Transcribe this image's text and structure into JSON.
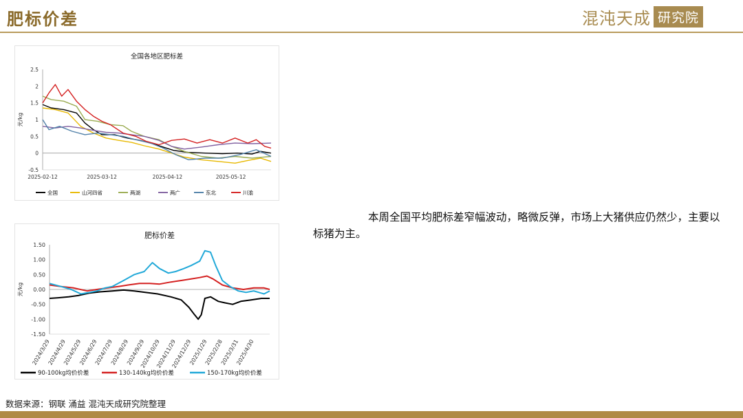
{
  "header": {
    "title": "肥标价差",
    "brand_text": "混沌天成",
    "brand_box": "研究院"
  },
  "commentary": "本周全国平均肥标差窄幅波动，略微反弹，市场上大猪供应仍然少，主要以标猪为主。",
  "source": "数据来源：钢联 涌益 混沌天成研究院整理",
  "chart_data": [
    {
      "type": "line",
      "title": "全国各地区肥标差",
      "ylabel": "元/kg",
      "ylim": [
        -0.5,
        2.5
      ],
      "yticks": [
        2.5,
        2,
        1.5,
        1,
        0.5,
        0,
        -0.5
      ],
      "xticks": [
        "2025-02-12",
        "2025-03-12",
        "2025-04-12",
        "2025-05-12"
      ],
      "x_range": [
        "2025-02-12",
        "2025-05-31"
      ],
      "grid": false,
      "legend_position": "bottom",
      "series": [
        {
          "name": "全国",
          "color": "#000000",
          "points": [
            [
              "2025-02-12",
              1.45
            ],
            [
              "2025-02-16",
              1.35
            ],
            [
              "2025-02-22",
              1.3
            ],
            [
              "2025-02-28",
              1.2
            ],
            [
              "2025-03-04",
              0.9
            ],
            [
              "2025-03-08",
              0.7
            ],
            [
              "2025-03-12",
              0.55
            ],
            [
              "2025-03-18",
              0.55
            ],
            [
              "2025-03-24",
              0.45
            ],
            [
              "2025-03-30",
              0.38
            ],
            [
              "2025-04-05",
              0.28
            ],
            [
              "2025-04-10",
              0.18
            ],
            [
              "2025-04-15",
              0.08
            ],
            [
              "2025-04-22",
              0.02
            ],
            [
              "2025-04-30",
              0.0
            ],
            [
              "2025-05-08",
              -0.02
            ],
            [
              "2025-05-15",
              0.0
            ],
            [
              "2025-05-22",
              -0.03
            ],
            [
              "2025-05-26",
              0.05
            ],
            [
              "2025-05-31",
              0.0
            ]
          ]
        },
        {
          "name": "山河四省",
          "color": "#e8b800",
          "points": [
            [
              "2025-02-12",
              1.35
            ],
            [
              "2025-02-18",
              1.3
            ],
            [
              "2025-02-24",
              1.2
            ],
            [
              "2025-03-02",
              0.8
            ],
            [
              "2025-03-08",
              0.6
            ],
            [
              "2025-03-14",
              0.45
            ],
            [
              "2025-03-20",
              0.38
            ],
            [
              "2025-03-26",
              0.32
            ],
            [
              "2025-04-01",
              0.22
            ],
            [
              "2025-04-08",
              0.12
            ],
            [
              "2025-04-14",
              0.0
            ],
            [
              "2025-04-20",
              -0.12
            ],
            [
              "2025-04-28",
              -0.2
            ],
            [
              "2025-05-06",
              -0.25
            ],
            [
              "2025-05-14",
              -0.3
            ],
            [
              "2025-05-20",
              -0.22
            ],
            [
              "2025-05-26",
              -0.15
            ],
            [
              "2025-05-31",
              -0.25
            ]
          ]
        },
        {
          "name": "两湖",
          "color": "#9aab50",
          "points": [
            [
              "2025-02-12",
              1.7
            ],
            [
              "2025-02-16",
              1.6
            ],
            [
              "2025-02-22",
              1.55
            ],
            [
              "2025-02-28",
              1.4
            ],
            [
              "2025-03-04",
              1.0
            ],
            [
              "2025-03-10",
              0.95
            ],
            [
              "2025-03-16",
              0.85
            ],
            [
              "2025-03-22",
              0.82
            ],
            [
              "2025-03-26",
              0.65
            ],
            [
              "2025-04-01",
              0.5
            ],
            [
              "2025-04-08",
              0.4
            ],
            [
              "2025-04-14",
              0.2
            ],
            [
              "2025-04-20",
              0.05
            ],
            [
              "2025-04-28",
              -0.1
            ],
            [
              "2025-05-06",
              -0.15
            ],
            [
              "2025-05-14",
              -0.1
            ],
            [
              "2025-05-22",
              -0.15
            ],
            [
              "2025-05-31",
              -0.1
            ]
          ]
        },
        {
          "name": "两广",
          "color": "#8060a0",
          "points": [
            [
              "2025-02-12",
              0.8
            ],
            [
              "2025-02-18",
              0.75
            ],
            [
              "2025-02-24",
              0.8
            ],
            [
              "2025-03-02",
              0.75
            ],
            [
              "2025-03-08",
              0.68
            ],
            [
              "2025-03-14",
              0.62
            ],
            [
              "2025-03-20",
              0.6
            ],
            [
              "2025-03-26",
              0.55
            ],
            [
              "2025-04-01",
              0.5
            ],
            [
              "2025-04-08",
              0.38
            ],
            [
              "2025-04-14",
              0.2
            ],
            [
              "2025-04-20",
              0.12
            ],
            [
              "2025-04-28",
              0.18
            ],
            [
              "2025-05-06",
              0.25
            ],
            [
              "2025-05-14",
              0.3
            ],
            [
              "2025-05-22",
              0.28
            ],
            [
              "2025-05-31",
              0.3
            ]
          ]
        },
        {
          "name": "东北",
          "color": "#5080a8",
          "points": [
            [
              "2025-02-12",
              1.0
            ],
            [
              "2025-02-15",
              0.7
            ],
            [
              "2025-02-20",
              0.8
            ],
            [
              "2025-02-26",
              0.65
            ],
            [
              "2025-03-04",
              0.55
            ],
            [
              "2025-03-10",
              0.6
            ],
            [
              "2025-03-16",
              0.55
            ],
            [
              "2025-03-22",
              0.5
            ],
            [
              "2025-03-28",
              0.4
            ],
            [
              "2025-04-04",
              0.3
            ],
            [
              "2025-04-10",
              0.15
            ],
            [
              "2025-04-16",
              -0.05
            ],
            [
              "2025-04-22",
              -0.2
            ],
            [
              "2025-04-30",
              -0.15
            ],
            [
              "2025-05-08",
              -0.15
            ],
            [
              "2025-05-16",
              -0.05
            ],
            [
              "2025-05-24",
              0.1
            ],
            [
              "2025-05-31",
              -0.1
            ]
          ]
        },
        {
          "name": "川渝",
          "color": "#d42020",
          "points": [
            [
              "2025-02-12",
              1.5
            ],
            [
              "2025-02-15",
              1.8
            ],
            [
              "2025-02-18",
              2.05
            ],
            [
              "2025-02-21",
              1.7
            ],
            [
              "2025-02-24",
              1.9
            ],
            [
              "2025-02-28",
              1.55
            ],
            [
              "2025-03-04",
              1.3
            ],
            [
              "2025-03-08",
              1.1
            ],
            [
              "2025-03-12",
              0.95
            ],
            [
              "2025-03-16",
              0.85
            ],
            [
              "2025-03-22",
              0.6
            ],
            [
              "2025-03-28",
              0.5
            ],
            [
              "2025-04-02",
              0.35
            ],
            [
              "2025-04-08",
              0.25
            ],
            [
              "2025-04-14",
              0.38
            ],
            [
              "2025-04-20",
              0.42
            ],
            [
              "2025-04-26",
              0.3
            ],
            [
              "2025-05-02",
              0.4
            ],
            [
              "2025-05-08",
              0.3
            ],
            [
              "2025-05-14",
              0.45
            ],
            [
              "2025-05-20",
              0.3
            ],
            [
              "2025-05-24",
              0.4
            ],
            [
              "2025-05-28",
              0.2
            ],
            [
              "2025-05-31",
              0.15
            ]
          ]
        }
      ]
    },
    {
      "type": "line",
      "title": "肥标价差",
      "ylabel": "元/kg",
      "ylim": [
        -1.5,
        1.5
      ],
      "yticks": [
        "1.50",
        "1.00",
        "0.50",
        "0.00",
        "-0.50",
        "-1.00",
        "-1.50"
      ],
      "xticks": [
        "2024/3/29",
        "2024/4/29",
        "2024/5/29",
        "2024/6/29",
        "2024/7/29",
        "2024/8/29",
        "2024/9/29",
        "2024/10/29",
        "2024/11/29",
        "2024/12/29",
        "2025/1/29",
        "2025/2/28",
        "2025/3/31",
        "2025/4/30"
      ],
      "x_range": [
        "2024-03-29",
        "2025-05-31"
      ],
      "grid": false,
      "legend_position": "bottom",
      "series": [
        {
          "name": "90-100kg均价价差",
          "color": "#000000",
          "points": [
            [
              "2024-03-29",
              -0.3
            ],
            [
              "2024-04-15",
              -0.28
            ],
            [
              "2024-05-05",
              -0.25
            ],
            [
              "2024-05-25",
              -0.2
            ],
            [
              "2024-06-15",
              -0.12
            ],
            [
              "2024-07-05",
              -0.08
            ],
            [
              "2024-07-29",
              -0.05
            ],
            [
              "2024-08-20",
              -0.02
            ],
            [
              "2024-09-10",
              -0.05
            ],
            [
              "2024-10-01",
              -0.1
            ],
            [
              "2024-10-25",
              -0.15
            ],
            [
              "2024-11-20",
              -0.25
            ],
            [
              "2024-12-10",
              -0.35
            ],
            [
              "2024-12-25",
              -0.6
            ],
            [
              "2025-01-05",
              -0.85
            ],
            [
              "2025-01-12",
              -1.0
            ],
            [
              "2025-01-18",
              -0.85
            ],
            [
              "2025-01-25",
              -0.3
            ],
            [
              "2025-02-05",
              -0.25
            ],
            [
              "2025-02-20",
              -0.4
            ],
            [
              "2025-03-05",
              -0.45
            ],
            [
              "2025-03-20",
              -0.5
            ],
            [
              "2025-04-05",
              -0.4
            ],
            [
              "2025-04-25",
              -0.35
            ],
            [
              "2025-05-15",
              -0.3
            ],
            [
              "2025-05-31",
              -0.3
            ]
          ]
        },
        {
          "name": "130-140kg均价价差",
          "color": "#d42020",
          "points": [
            [
              "2024-03-29",
              0.15
            ],
            [
              "2024-04-20",
              0.1
            ],
            [
              "2024-05-15",
              0.05
            ],
            [
              "2024-06-10",
              -0.05
            ],
            [
              "2024-06-29",
              0.0
            ],
            [
              "2024-07-20",
              0.05
            ],
            [
              "2024-08-10",
              0.1
            ],
            [
              "2024-08-29",
              0.15
            ],
            [
              "2024-09-20",
              0.2
            ],
            [
              "2024-10-10",
              0.2
            ],
            [
              "2024-10-29",
              0.18
            ],
            [
              "2024-11-20",
              0.25
            ],
            [
              "2024-12-10",
              0.3
            ],
            [
              "2024-12-29",
              0.35
            ],
            [
              "2025-01-15",
              0.4
            ],
            [
              "2025-01-29",
              0.45
            ],
            [
              "2025-02-10",
              0.35
            ],
            [
              "2025-02-28",
              0.15
            ],
            [
              "2025-03-20",
              0.05
            ],
            [
              "2025-04-10",
              0.0
            ],
            [
              "2025-04-30",
              0.05
            ],
            [
              "2025-05-20",
              0.05
            ],
            [
              "2025-05-31",
              0.0
            ]
          ]
        },
        {
          "name": "150-170kg均价价差",
          "color": "#20a8d8",
          "points": [
            [
              "2024-03-29",
              0.2
            ],
            [
              "2024-04-20",
              0.1
            ],
            [
              "2024-05-10",
              0.0
            ],
            [
              "2024-05-29",
              -0.15
            ],
            [
              "2024-06-15",
              -0.1
            ],
            [
              "2024-06-29",
              -0.05
            ],
            [
              "2024-07-15",
              0.05
            ],
            [
              "2024-07-29",
              0.1
            ],
            [
              "2024-08-20",
              0.3
            ],
            [
              "2024-09-10",
              0.5
            ],
            [
              "2024-09-29",
              0.6
            ],
            [
              "2024-10-15",
              0.9
            ],
            [
              "2024-10-29",
              0.7
            ],
            [
              "2024-11-15",
              0.55
            ],
            [
              "2024-11-29",
              0.6
            ],
            [
              "2024-12-15",
              0.7
            ],
            [
              "2024-12-29",
              0.8
            ],
            [
              "2025-01-15",
              0.95
            ],
            [
              "2025-01-25",
              1.3
            ],
            [
              "2025-02-05",
              1.25
            ],
            [
              "2025-02-15",
              0.8
            ],
            [
              "2025-02-28",
              0.3
            ],
            [
              "2025-03-15",
              0.1
            ],
            [
              "2025-03-31",
              -0.05
            ],
            [
              "2025-04-15",
              -0.1
            ],
            [
              "2025-04-30",
              -0.05
            ],
            [
              "2025-05-20",
              -0.15
            ],
            [
              "2025-05-31",
              -0.05
            ]
          ]
        }
      ]
    }
  ]
}
